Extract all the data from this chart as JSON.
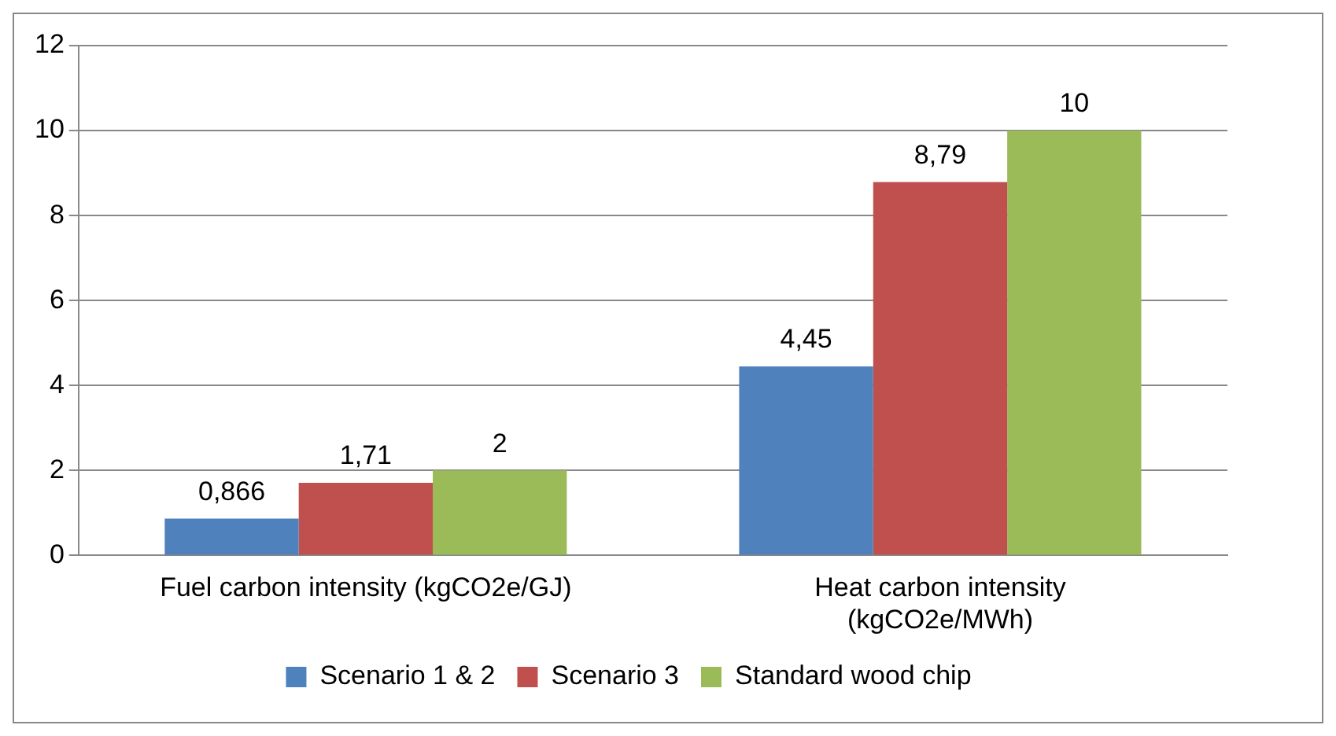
{
  "chart_data": {
    "type": "bar",
    "categories": [
      "Fuel carbon intensity (kgCO2e/GJ)",
      "Heat carbon intensity\n(kgCO2e/MWh)"
    ],
    "series": [
      {
        "name": "Scenario 1 & 2",
        "color": "#4f81bd",
        "values": [
          0.866,
          4.45
        ],
        "value_labels": [
          "0,866",
          "4,45"
        ]
      },
      {
        "name": "Scenario 3",
        "color": "#c0504d",
        "values": [
          1.71,
          8.79
        ],
        "value_labels": [
          "1,71",
          "8,79"
        ]
      },
      {
        "name": "Standard wood chip",
        "color": "#9bbb59",
        "values": [
          2,
          10
        ],
        "value_labels": [
          "2",
          "10"
        ]
      }
    ],
    "ylim": [
      0,
      12
    ],
    "yticks": [
      0,
      2,
      4,
      6,
      8,
      10,
      12
    ],
    "grid": "y",
    "legend": "bottom"
  }
}
